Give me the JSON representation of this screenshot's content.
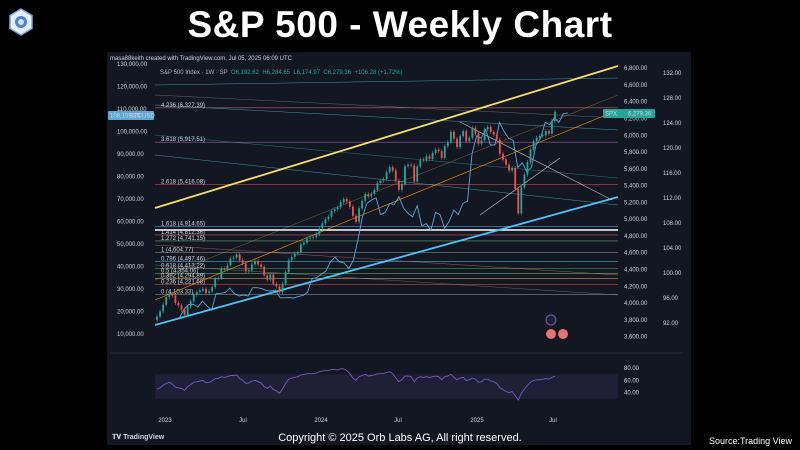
{
  "title": "S&P 500 - Weekly Chart",
  "credit": "masa88keith created with TradingView.com, Jul 05, 2025 06:09 UTC",
  "instrument": {
    "name": "S&P 500 Index · 1W · SP",
    "open": "O6,192.62",
    "high": "H6,284.65",
    "low": "L6,174.97",
    "close": "C6,279.36",
    "change": "+106.28 (+1.72%)"
  },
  "badges": {
    "btc": "108,159.20",
    "btc_label": "BTCUSD",
    "spx_label": "SPX",
    "spx": "6,279.36"
  },
  "footer": "Copyright © 2025 Orb Labs AG, All right reserved.",
  "source": "Source:Trading View",
  "tradingview_logo": "TradingView",
  "colors": {
    "up": "#26a69a",
    "down": "#ef5350",
    "channel_top": "#f5e06e",
    "channel_bottom": "#4fc3f7",
    "btc_line": "#5da7d6",
    "rsi": "#7e57c2"
  },
  "chart_data": {
    "type": "line",
    "title": "S&P 500 - Weekly Chart",
    "x_ticks": [
      "2023",
      "Jul",
      "2024",
      "Jul",
      "2025",
      "Jul"
    ],
    "btc_axis": {
      "ticks": [
        "130,000.00",
        "120,000.00",
        "110,000.00",
        "100,000.00",
        "90,000.00",
        "80,000.00",
        "70,000.00",
        "60,000.00",
        "50,000.00",
        "40,000.00",
        "30,000.00",
        "20,000.00",
        "10,000.00"
      ],
      "range": [
        5000,
        130000
      ]
    },
    "spx_axis": {
      "ticks": [
        "6,800.00",
        "6,600.00",
        "6,400.00",
        "6,200.00",
        "6,000.00",
        "5,800.00",
        "5,600.00",
        "5,400.00",
        "5,200.00",
        "5,000.00",
        "4,800.00",
        "4,600.00",
        "4,400.00",
        "4,200.00",
        "4,000.00",
        "3,800.00",
        "3,600.00"
      ],
      "range": [
        3500,
        6850
      ]
    },
    "dxy_axis": {
      "ticks": [
        "132.00",
        "128.00",
        "124.00",
        "120.00",
        "116.00",
        "112.00",
        "108.00",
        "104.00",
        "100.00",
        "96.00",
        "92.00"
      ]
    },
    "rsi_axis": {
      "ticks": [
        "80.00",
        "60.00",
        "40.00"
      ],
      "range": [
        20,
        90
      ]
    },
    "fib_levels": [
      {
        "label": "4.236 (6,327.39)",
        "value": 6327.39,
        "color": "#e57373"
      },
      {
        "label": "3.618 (5,917.51)",
        "value": 5917.51,
        "color": "#ba68c8"
      },
      {
        "label": "2.618 (5,416.08)",
        "value": 5416.08,
        "color": "#ef5350"
      },
      {
        "label": "1.618 (4,914.65)",
        "value": 4914.65,
        "color": "#64b5f6"
      },
      {
        "label": "1.414 (4,812.36)",
        "value": 4812.36,
        "color": "#e57373"
      },
      {
        "label": "1.272 (4,741.15)",
        "value": 4741.15,
        "color": "#81c784"
      },
      {
        "label": "1 (4,604.77)",
        "value": 4604.77,
        "color": "#9e9e9e"
      },
      {
        "label": "0.786 (4,497.46)",
        "value": 4497.46,
        "color": "#4dd0e1"
      },
      {
        "label": "0.618 (4,413.22)",
        "value": 4413.22,
        "color": "#4caf50"
      },
      {
        "label": "0.5 (4,354.06)",
        "value": 4354.06,
        "color": "#81c784"
      },
      {
        "label": "0.382 (4,294.89)",
        "value": 4294.89,
        "color": "#ffb74d"
      },
      {
        "label": "0.236 (4,221.68)",
        "value": 4221.68,
        "color": "#ef5350"
      },
      {
        "label": "0 (4,103.33)",
        "value": 4103.33,
        "color": "#9e9e9e"
      }
    ],
    "spx_weekly_close": [
      3840,
      3900,
      3980,
      4070,
      4110,
      4090,
      4000,
      3970,
      3920,
      3860,
      3960,
      4020,
      4100,
      4130,
      4150,
      4170,
      4120,
      4140,
      4190,
      4290,
      4300,
      4410,
      4400,
      4450,
      4530,
      4540,
      4580,
      4510,
      4470,
      4380,
      4390,
      4460,
      4500,
      4460,
      4430,
      4330,
      4280,
      4340,
      4230,
      4200,
      4130,
      4230,
      4370,
      4510,
      4550,
      4590,
      4600,
      4700,
      4720,
      4770,
      4780,
      4790,
      4820,
      4890,
      4950,
      5000,
      5030,
      5100,
      5120,
      5140,
      5200,
      5240,
      5210,
      5150,
      5040,
      4970,
      5130,
      5220,
      5300,
      5270,
      5300,
      5350,
      5430,
      5460,
      5480,
      5560,
      5620,
      5580,
      5460,
      5350,
      5420,
      5630,
      5650,
      5640,
      5450,
      5630,
      5710,
      5700,
      5750,
      5720,
      5790,
      5830,
      5810,
      5730,
      5870,
      5920,
      6040,
      5960,
      5860,
      5990,
      6050,
      5930,
      5970,
      6090,
      6020,
      5900,
      5940,
      6070,
      6100,
      6040,
      6010,
      5950,
      5780,
      5710,
      5650,
      5580,
      5610,
      5360,
      5070,
      5380,
      5530,
      5680,
      5830,
      5930,
      5970,
      5990,
      6000,
      6050,
      6020,
      6170,
      6280
    ],
    "btc_weekly_close": [
      16600,
      17200,
      20900,
      23000,
      23100,
      21800,
      24500,
      22400,
      20500,
      27900,
      28000,
      28400,
      30300,
      27800,
      26800,
      27200,
      26800,
      30500,
      30500,
      30100,
      29200,
      29000,
      29400,
      26000,
      26000,
      26100,
      25900,
      26600,
      27000,
      28500,
      34500,
      35000,
      36500,
      37800,
      42000,
      44000,
      42000,
      41500,
      39000,
      42500,
      51500,
      62000,
      68000,
      69500,
      70500,
      63000,
      64000,
      68000,
      67500,
      71000,
      66000,
      63500,
      62000,
      67000,
      58000,
      59000,
      56000,
      64000,
      63000,
      57000,
      60000,
      65000,
      63000,
      68000,
      69000,
      90000,
      98000,
      97000,
      101000,
      94000,
      94000,
      104000,
      100000,
      97000,
      96000,
      84000,
      86000,
      82000,
      84000,
      94000,
      97000,
      104000,
      103000,
      106000,
      104000,
      108000,
      108159
    ],
    "rsi": [
      46,
      48,
      52,
      55,
      57,
      54,
      49,
      48,
      47,
      44,
      50,
      53,
      57,
      58,
      59,
      60,
      56,
      57,
      59,
      63,
      63,
      66,
      65,
      66,
      68,
      68,
      69,
      63,
      60,
      55,
      56,
      59,
      60,
      58,
      56,
      50,
      47,
      51,
      45,
      43,
      39,
      46,
      55,
      62,
      64,
      65,
      66,
      69,
      70,
      71,
      71,
      71,
      72,
      74,
      75,
      76,
      76,
      78,
      78,
      77,
      79,
      79,
      76,
      71,
      64,
      60,
      66,
      68,
      70,
      67,
      68,
      69,
      71,
      71,
      71,
      73,
      74,
      71,
      64,
      58,
      61,
      67,
      67,
      66,
      58,
      64,
      66,
      65,
      66,
      65,
      66,
      67,
      66,
      61,
      66,
      67,
      70,
      65,
      61,
      64,
      65,
      60,
      61,
      64,
      62,
      57,
      58,
      62,
      62,
      59,
      58,
      55,
      48,
      45,
      42,
      40,
      42,
      35,
      28,
      39,
      46,
      52,
      57,
      60,
      61,
      61,
      62,
      63,
      62,
      65,
      67
    ]
  }
}
